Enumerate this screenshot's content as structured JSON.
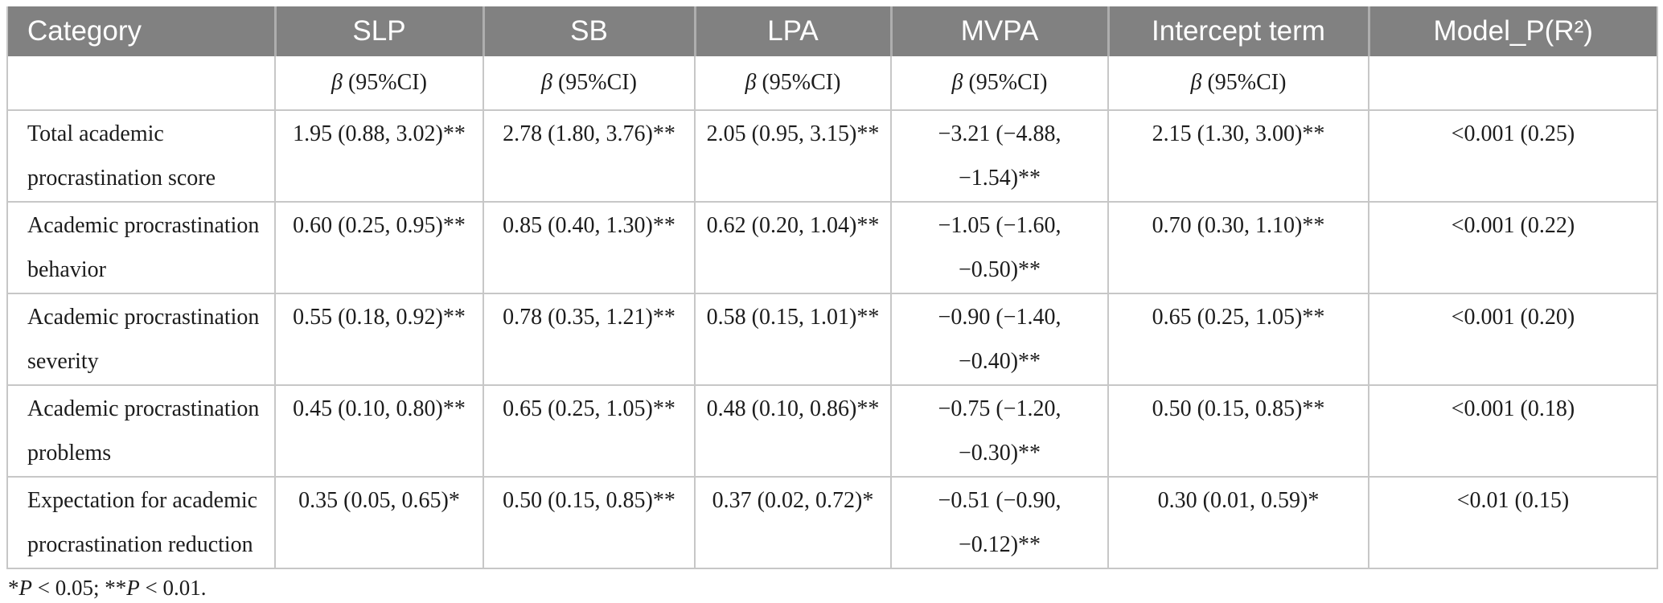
{
  "table": {
    "header": {
      "columns": [
        "Category",
        "SLP",
        "SB",
        "LPA",
        "MVPA",
        "Intercept term",
        "Model_P(R²)"
      ]
    },
    "subheader": {
      "beta": "β",
      "ci": " (95%CI)"
    },
    "rows": [
      {
        "category": "Total academic procrastination score",
        "slp": "1.95 (0.88, 3.02)**",
        "sb": "2.78 (1.80, 3.76)**",
        "lpa": "2.05 (0.95, 3.15)**",
        "mvpa": "−3.21 (−4.88, −1.54)**",
        "intercept": "2.15 (1.30, 3.00)**",
        "model": "<0.001 (0.25)"
      },
      {
        "category": "Academic procrastination behavior",
        "slp": "0.60 (0.25, 0.95)**",
        "sb": "0.85 (0.40, 1.30)**",
        "lpa": "0.62 (0.20, 1.04)**",
        "mvpa": "−1.05 (−1.60, −0.50)**",
        "intercept": "0.70 (0.30, 1.10)**",
        "model": "<0.001 (0.22)"
      },
      {
        "category": "Academic procrastination severity",
        "slp": "0.55 (0.18, 0.92)**",
        "sb": "0.78 (0.35, 1.21)**",
        "lpa": "0.58 (0.15, 1.01)**",
        "mvpa": "−0.90 (−1.40, −0.40)**",
        "intercept": "0.65 (0.25, 1.05)**",
        "model": "<0.001 (0.20)"
      },
      {
        "category": "Academic procrastination problems",
        "slp": "0.45 (0.10, 0.80)**",
        "sb": "0.65 (0.25, 1.05)**",
        "lpa": "0.48 (0.10, 0.86)**",
        "mvpa": "−0.75 (−1.20, −0.30)**",
        "intercept": "0.50 (0.15, 0.85)**",
        "model": "<0.001 (0.18)"
      },
      {
        "category": "Expectation for academic procrastination reduction",
        "slp": "0.35 (0.05, 0.65)*",
        "sb": "0.50 (0.15, 0.85)**",
        "lpa": "0.37 (0.02, 0.72)*",
        "mvpa": "−0.51 (−0.90, −0.12)**",
        "intercept": "0.30 (0.01, 0.59)*",
        "model": "<0.01 (0.15)"
      }
    ],
    "footnote": {
      "star1": "*",
      "p1": "P",
      "seg1": " < 0.05; ",
      "star2": "**",
      "p2": "P",
      "seg2": " < 0.01."
    }
  }
}
